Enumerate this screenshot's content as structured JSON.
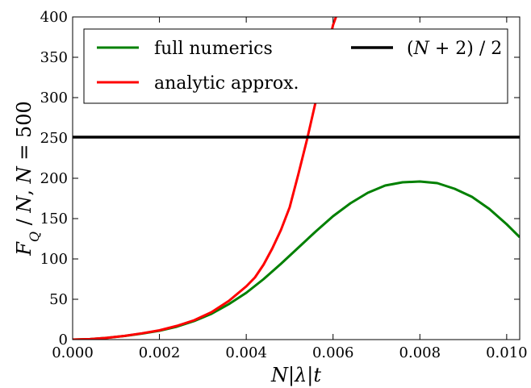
{
  "chart_data": {
    "type": "line",
    "title": "",
    "xlabel": "N|λ|t",
    "ylabel": "F_Q / N, N = 500",
    "xlim": [
      0.0,
      0.0103
    ],
    "ylim": [
      0,
      400
    ],
    "x_ticks": [
      "0.000",
      "0.002",
      "0.004",
      "0.006",
      "0.008",
      "0.010"
    ],
    "y_ticks": [
      "0",
      "50",
      "100",
      "150",
      "200",
      "250",
      "300",
      "350",
      "400"
    ],
    "grid": false,
    "legend_position": "top",
    "series": [
      {
        "name": "full numerics",
        "color": "#008000",
        "x": [
          0.0,
          0.0004,
          0.0008,
          0.0012,
          0.0016,
          0.002,
          0.0024,
          0.0028,
          0.0032,
          0.0036,
          0.004,
          0.0044,
          0.0048,
          0.0052,
          0.0056,
          0.006,
          0.0064,
          0.0068,
          0.0072,
          0.0076,
          0.008,
          0.0084,
          0.0088,
          0.0092,
          0.0096,
          0.01,
          0.0103
        ],
        "y": [
          0,
          0.6,
          2.2,
          4.5,
          7.5,
          11,
          16,
          23,
          32,
          44,
          58,
          75,
          94,
          114,
          134,
          153,
          169,
          182,
          191,
          195,
          196,
          194,
          187,
          177,
          162,
          143,
          127
        ]
      },
      {
        "name": "analytic approx.",
        "color": "#ff0000",
        "x": [
          0.0,
          0.0004,
          0.0008,
          0.0012,
          0.0016,
          0.002,
          0.0024,
          0.0028,
          0.0032,
          0.0036,
          0.004,
          0.0042,
          0.0044,
          0.0046,
          0.0048,
          0.005,
          0.0052,
          0.0054,
          0.0056,
          0.0058,
          0.006,
          0.0062
        ],
        "y": [
          0,
          0.6,
          2.2,
          4.6,
          7.8,
          11.5,
          17,
          24,
          34,
          48,
          66,
          77,
          93,
          113,
          136,
          164,
          205,
          248,
          295,
          345,
          390,
          420
        ]
      },
      {
        "name": "(N + 2) / 2",
        "color": "#000000",
        "x": [
          0.0,
          0.0103
        ],
        "y": [
          251,
          251
        ]
      }
    ]
  }
}
